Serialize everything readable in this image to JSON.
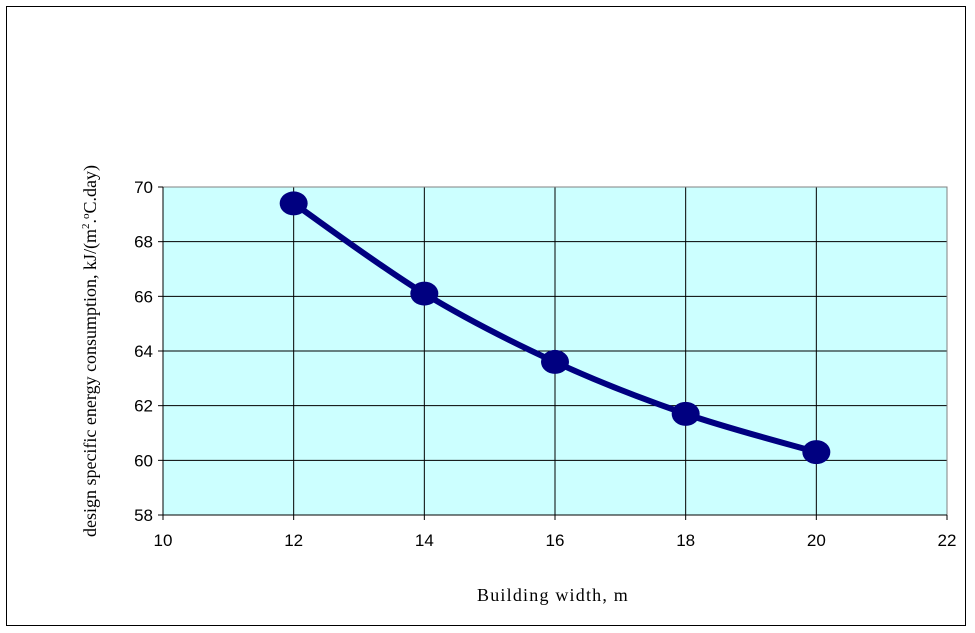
{
  "chart_data": {
    "type": "line",
    "title": "",
    "xlabel": "Building width, m",
    "ylabel_parts": {
      "main": "design specific energy consumption, kJ/(m",
      "sup1": "2",
      "mid": ".",
      "sup2": "o",
      "end": "C.day)"
    },
    "xlim": [
      10,
      22
    ],
    "ylim": [
      58,
      70
    ],
    "xticks": [
      10,
      12,
      14,
      16,
      18,
      20,
      22
    ],
    "yticks": [
      58,
      60,
      62,
      64,
      66,
      68,
      70
    ],
    "grid": true,
    "series": [
      {
        "x": [
          12,
          14,
          16,
          18,
          20
        ],
        "values": [
          69.4,
          66.1,
          63.6,
          61.7,
          60.3
        ]
      }
    ],
    "colors": {
      "plot_background": "#ccffff",
      "line": "#000080",
      "grid": "#000000"
    }
  }
}
